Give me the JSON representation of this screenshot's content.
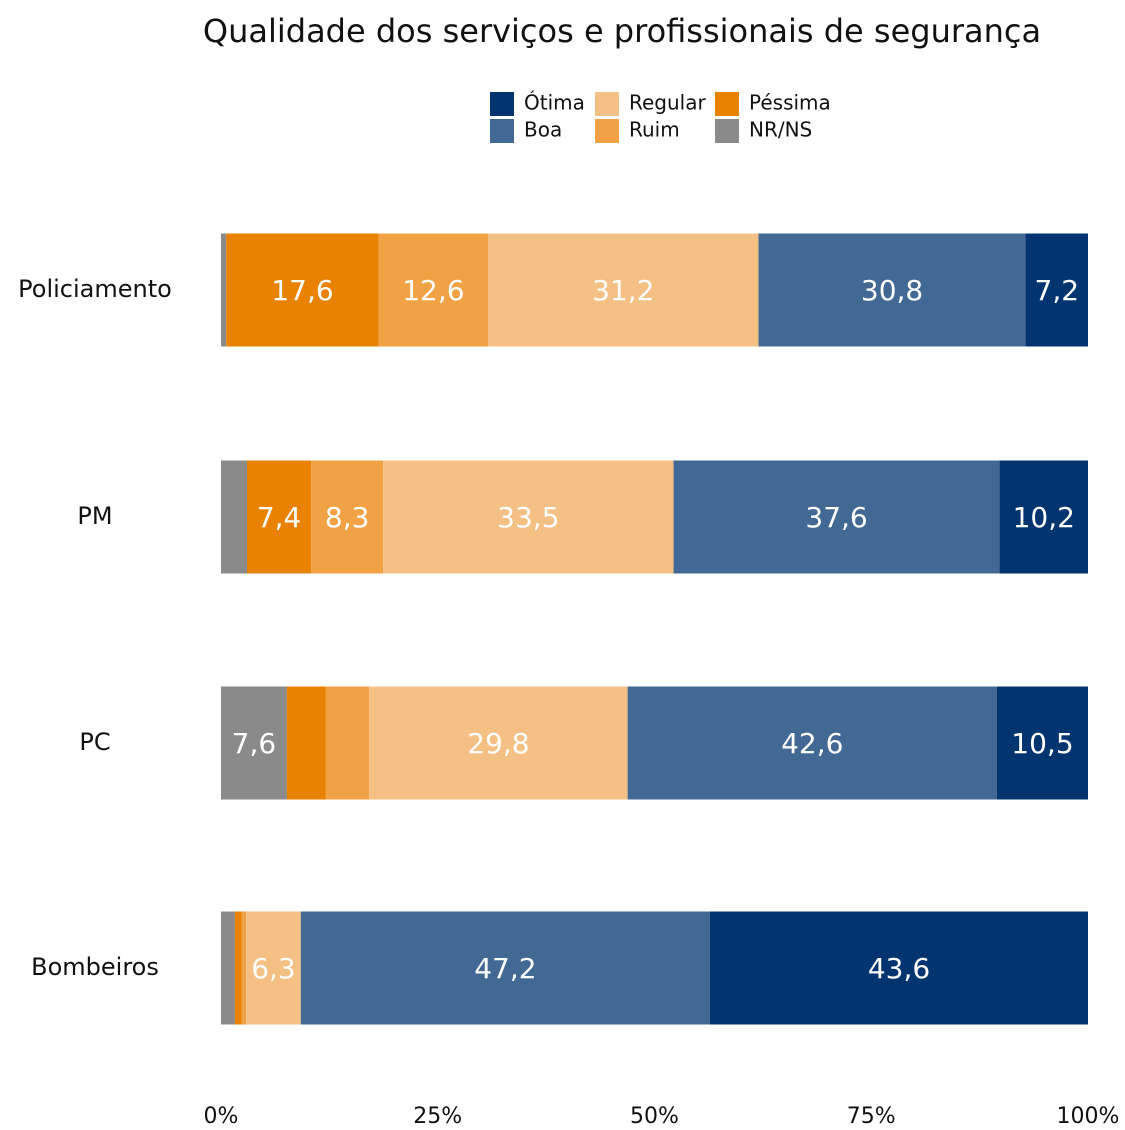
{
  "chart_data": {
    "type": "stacked-bar-horizontal",
    "title": "Qualidade dos serviços e profissionais de segurança",
    "categories": [
      "Policiamento",
      "PM",
      "PC",
      "Bombeiros"
    ],
    "series": [
      {
        "name": "Ótima",
        "color": "#023570",
        "values": [
          7.2,
          10.2,
          10.5,
          43.6
        ],
        "value_labels": [
          "7,2",
          "10,2",
          "10,5",
          "43,6"
        ]
      },
      {
        "name": "Boa",
        "color": "#426994",
        "values": [
          30.8,
          37.6,
          42.6,
          47.2
        ],
        "value_labels": [
          "30,8",
          "37,6",
          "42,6",
          "47,2"
        ]
      },
      {
        "name": "Regular",
        "color": "#f5c084",
        "values": [
          31.2,
          33.5,
          29.8,
          6.3
        ],
        "value_labels": [
          "31,2",
          "33,5",
          "29,8",
          "6,3"
        ]
      },
      {
        "name": "Ruim",
        "color": "#f0a244",
        "values": [
          12.6,
          8.3,
          5.0,
          0.5
        ],
        "value_labels": [
          "12,6",
          "8,3",
          null,
          null
        ]
      },
      {
        "name": "Péssima",
        "color": "#e88200",
        "values": [
          17.6,
          7.4,
          4.5,
          0.8
        ],
        "value_labels": [
          "17,6",
          "7,4",
          null,
          null
        ]
      },
      {
        "name": "NR/NS",
        "color": "#8a8a8a",
        "values": [
          0.6,
          3.0,
          7.6,
          1.6
        ],
        "value_labels": [
          null,
          null,
          "7,6",
          null
        ]
      }
    ],
    "xlim": [
      0,
      100
    ],
    "xticks": [
      {
        "value": 0,
        "label": "0%"
      },
      {
        "value": 25,
        "label": "25%"
      },
      {
        "value": 50,
        "label": "50%"
      },
      {
        "value": 75,
        "label": "75%"
      },
      {
        "value": 100,
        "label": "100%"
      }
    ]
  }
}
